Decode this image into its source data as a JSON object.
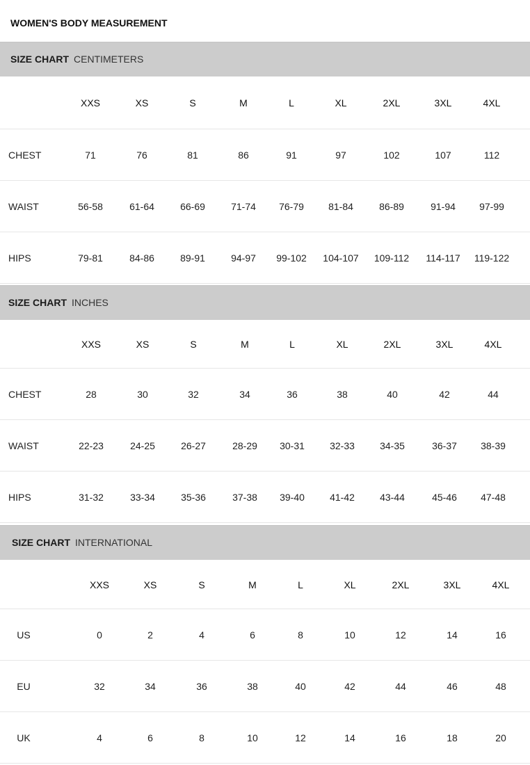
{
  "title": "WOMEN'S BODY MEASUREMENT",
  "sections": [
    {
      "label": "SIZE CHART",
      "unit": "CENTIMETERS",
      "sizes": [
        "XXS",
        "XS",
        "S",
        "M",
        "L",
        "XL",
        "2XL",
        "3XL",
        "4XL"
      ],
      "rows": [
        {
          "name": "CHEST",
          "values": [
            "71",
            "76",
            "81",
            "86",
            "91",
            "97",
            "102",
            "107",
            "112"
          ]
        },
        {
          "name": "WAIST",
          "values": [
            "56-58",
            "61-64",
            "66-69",
            "71-74",
            "76-79",
            "81-84",
            "86-89",
            "91-94",
            "97-99"
          ]
        },
        {
          "name": "HIPS",
          "values": [
            "79-81",
            "84-86",
            "89-91",
            "94-97",
            "99-102",
            "104-107",
            "109-112",
            "114-117",
            "119-122"
          ]
        }
      ]
    },
    {
      "label": "SIZE CHART",
      "unit": "INCHES",
      "sizes": [
        "XXS",
        "XS",
        "S",
        "M",
        "L",
        "XL",
        "2XL",
        "3XL",
        "4XL"
      ],
      "rows": [
        {
          "name": "CHEST",
          "values": [
            "28",
            "30",
            "32",
            "34",
            "36",
            "38",
            "40",
            "42",
            "44"
          ]
        },
        {
          "name": "WAIST",
          "values": [
            "22-23",
            "24-25",
            "26-27",
            "28-29",
            "30-31",
            "32-33",
            "34-35",
            "36-37",
            "38-39"
          ]
        },
        {
          "name": "HIPS",
          "values": [
            "31-32",
            "33-34",
            "35-36",
            "37-38",
            "39-40",
            "41-42",
            "43-44",
            "45-46",
            "47-48"
          ]
        }
      ]
    },
    {
      "label": "SIZE CHART",
      "unit": "INTERNATIONAL",
      "sizes": [
        "XXS",
        "XS",
        "S",
        "M",
        "L",
        "XL",
        "2XL",
        "3XL",
        "4XL"
      ],
      "rows": [
        {
          "name": "US",
          "values": [
            "0",
            "2",
            "4",
            "6",
            "8",
            "10",
            "12",
            "14",
            "16"
          ]
        },
        {
          "name": "EU",
          "values": [
            "32",
            "34",
            "36",
            "38",
            "40",
            "42",
            "44",
            "46",
            "48"
          ]
        },
        {
          "name": "UK",
          "values": [
            "4",
            "6",
            "8",
            "10",
            "12",
            "14",
            "16",
            "18",
            "20"
          ]
        }
      ]
    }
  ]
}
